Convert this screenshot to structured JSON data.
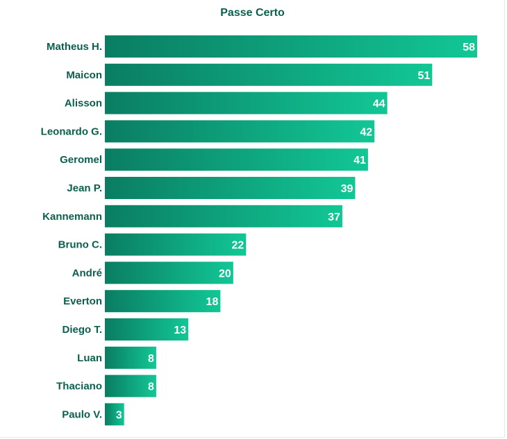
{
  "chart_data": {
    "type": "bar",
    "orientation": "horizontal",
    "title": "Passe Certo",
    "categories": [
      "Matheus H.",
      "Maicon",
      "Alisson",
      "Leonardo G.",
      "Geromel",
      "Jean P.",
      "Kannemann",
      "Bruno C.",
      "André",
      "Everton",
      "Diego T.",
      "Luan",
      "Thaciano",
      "Paulo V."
    ],
    "values": [
      58,
      51,
      44,
      42,
      41,
      39,
      37,
      22,
      20,
      18,
      13,
      8,
      8,
      3
    ],
    "xlim": [
      0,
      58
    ],
    "grid": false,
    "data_labels": true
  },
  "colors": {
    "bar_start": "#0a7d62",
    "bar_end": "#12c795",
    "label_text": "#0b5f4f",
    "value_text": "#ffffff"
  }
}
